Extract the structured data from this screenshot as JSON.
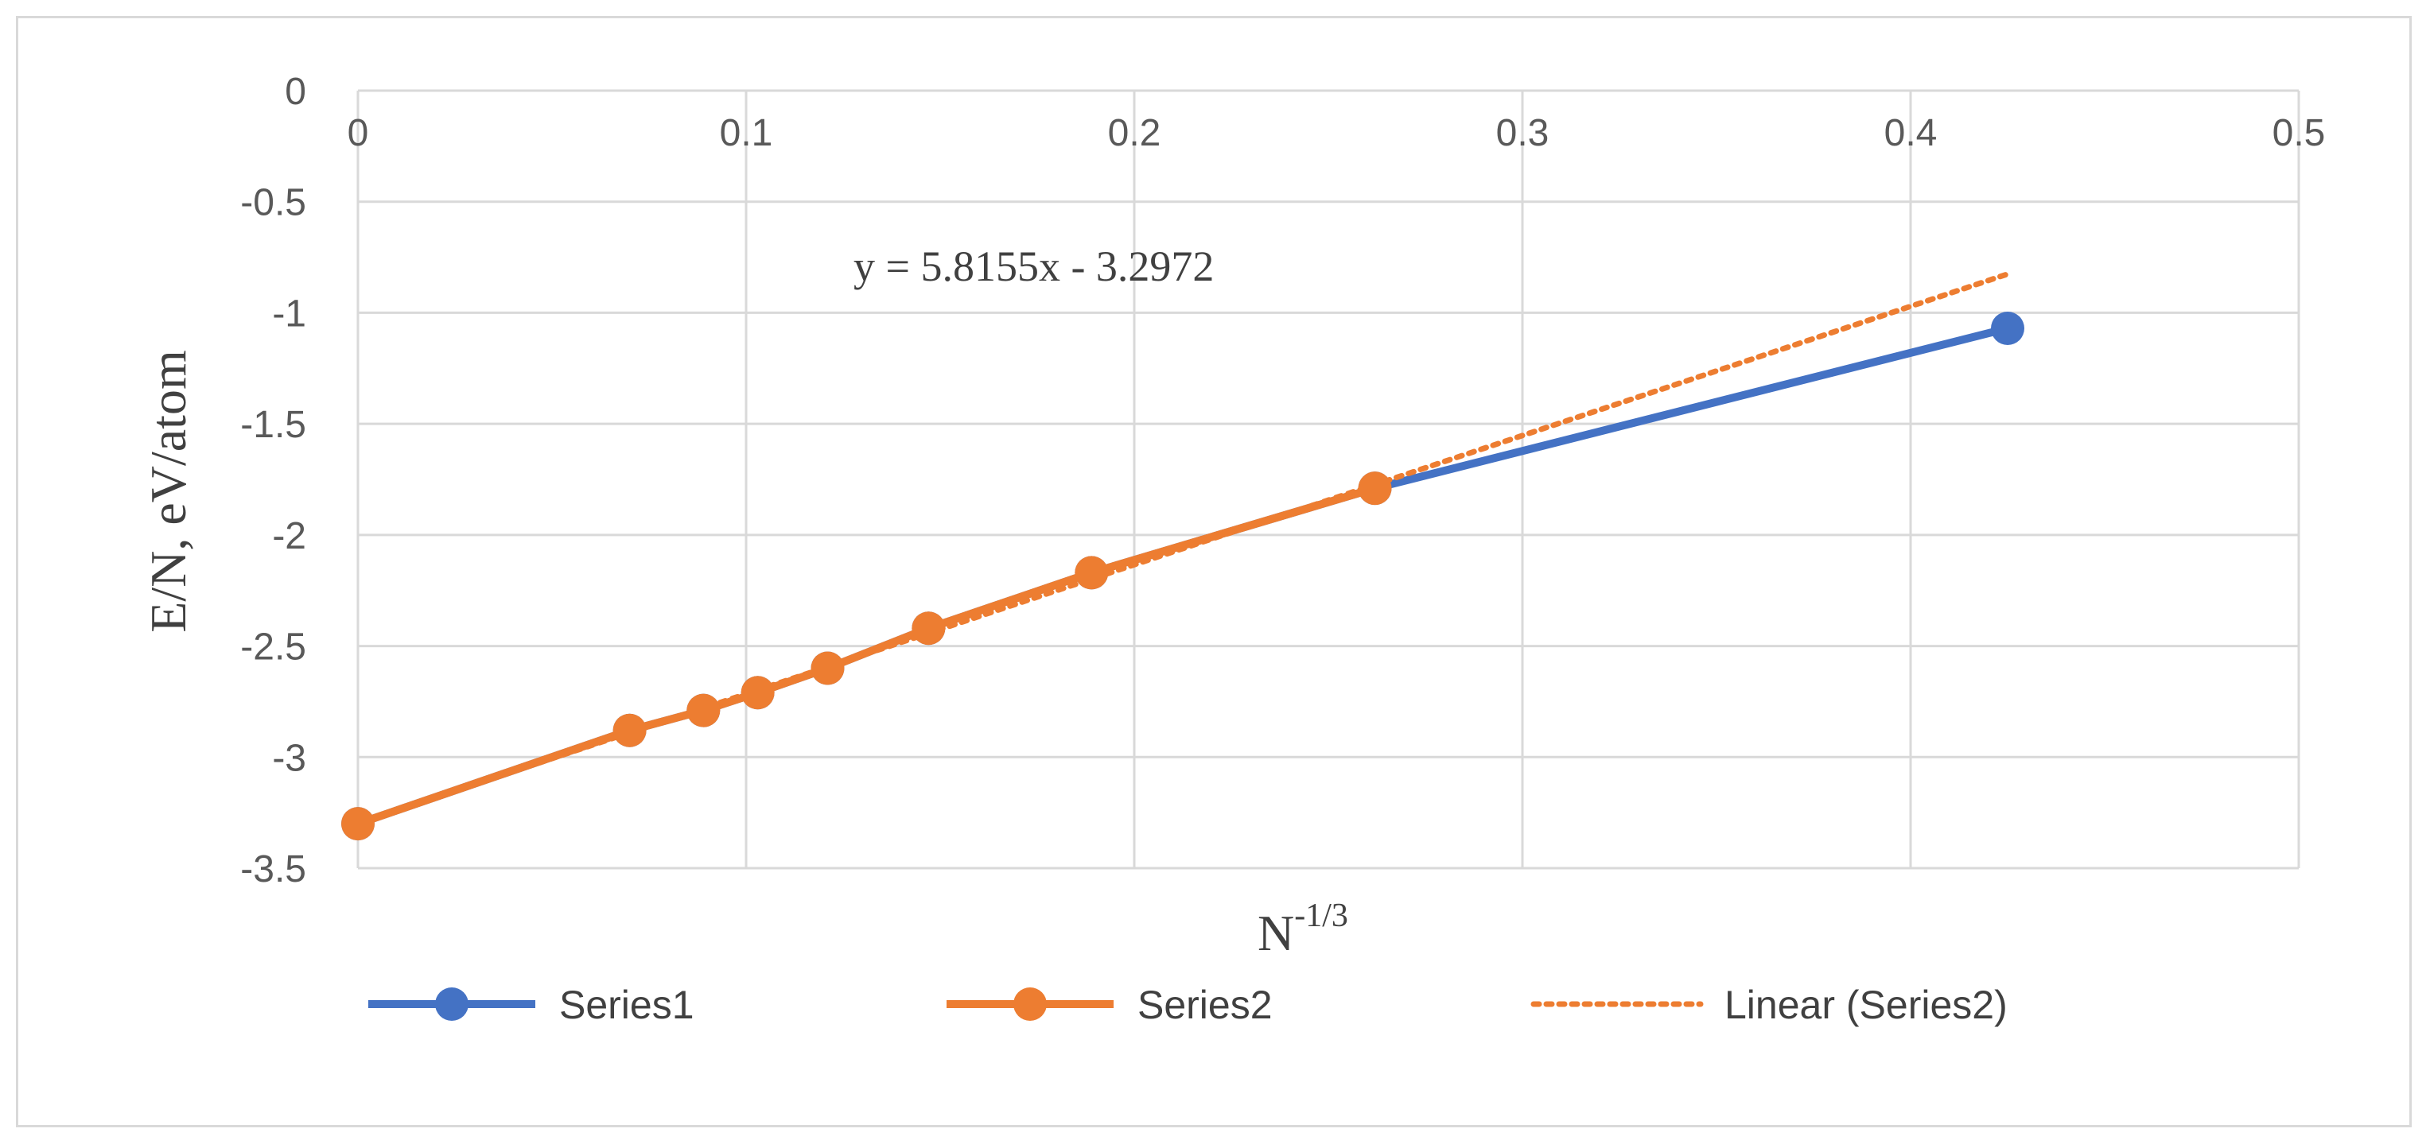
{
  "chart_data": {
    "type": "scatter",
    "xlabel": "N",
    "xlabel_superscript": "-1/3",
    "ylabel": "E/N, eV/atom",
    "xlim": [
      0,
      0.5
    ],
    "ylim": [
      -3.5,
      0
    ],
    "x_ticks": [
      "0",
      "0.1",
      "0.2",
      "0.3",
      "0.4",
      "0.5"
    ],
    "y_ticks": [
      "0",
      "-0.5",
      "-1",
      "-1.5",
      "-2",
      "-2.5",
      "-3",
      "-3.5"
    ],
    "x_tick_values": [
      0,
      0.1,
      0.2,
      0.3,
      0.4,
      0.5
    ],
    "y_tick_values": [
      0,
      -0.5,
      -1,
      -1.5,
      -2,
      -2.5,
      -3,
      -3.5
    ],
    "grid": true,
    "x_axis_position": "top",
    "legend_position": "bottom",
    "series": [
      {
        "name": "Series1",
        "color": "#4472C4",
        "x": [
          0,
          0.07,
          0.089,
          0.103,
          0.121,
          0.147,
          0.189,
          0.262,
          0.425
        ],
        "y": [
          -3.3,
          -2.88,
          -2.79,
          -2.71,
          -2.6,
          -2.42,
          -2.17,
          -1.79,
          -1.07
        ]
      },
      {
        "name": "Series2",
        "color": "#ED7D31",
        "x": [
          0,
          0.07,
          0.089,
          0.103,
          0.121,
          0.147,
          0.189,
          0.262
        ],
        "y": [
          -3.3,
          -2.88,
          -2.79,
          -2.71,
          -2.6,
          -2.42,
          -2.17,
          -1.79
        ]
      }
    ],
    "trendline": {
      "name": "Linear (Series2)",
      "color": "#ED7D31",
      "slope": 5.8155,
      "intercept": -3.2972,
      "x_range": [
        0,
        0.425
      ],
      "equation": "y = 5.8155x - 3.2972"
    }
  }
}
